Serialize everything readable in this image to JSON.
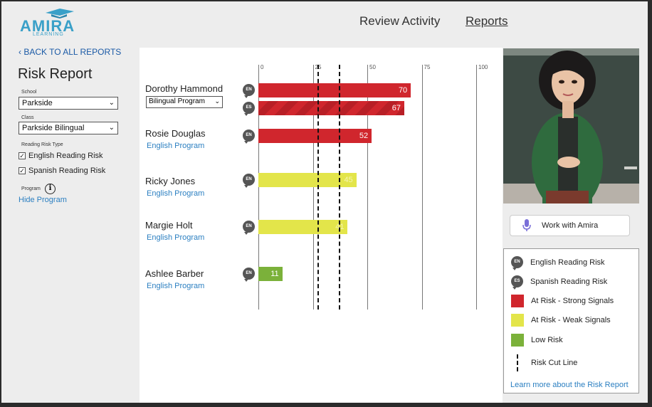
{
  "header": {
    "logo_text": "AMIRA",
    "logo_sub": "LEARNING",
    "nav": [
      {
        "label": "Review Activity"
      },
      {
        "label": "Reports"
      }
    ]
  },
  "sidebar": {
    "back_link": "BACK TO ALL REPORTS",
    "title": "Risk Report",
    "school_label": "School",
    "school_value": "Parkside",
    "class_label": "Class",
    "class_value": "Parkside Bilingual",
    "risk_type_label": "Reading Risk Type",
    "english_risk": "English Reading Risk",
    "spanish_risk": "Spanish Reading Risk",
    "program_label": "Program",
    "info_glyph": "i",
    "hide_program": "Hide Program"
  },
  "chart_data": {
    "type": "bar",
    "x_ticks": [
      "0",
      "25",
      "50",
      "75",
      "100"
    ],
    "xlim": [
      0,
      100
    ],
    "cut_lines": [
      27,
      37
    ],
    "students": [
      {
        "name": "Dorothy Hammond",
        "program": "Bilingual Program",
        "program_type": "select",
        "bars": [
          {
            "lang": "EN",
            "value": 70,
            "risk": "strong",
            "label": "70"
          },
          {
            "lang": "ES",
            "value": 67,
            "risk": "strong",
            "label": "67"
          }
        ]
      },
      {
        "name": "Rosie Douglas",
        "program": "English Program",
        "bars": [
          {
            "lang": "EN",
            "value": 52,
            "risk": "strong",
            "label": "52"
          }
        ]
      },
      {
        "name": "Ricky Jones",
        "program": "English Program",
        "bars": [
          {
            "lang": "EN",
            "value": 45,
            "risk": "weak",
            "label": "45"
          }
        ]
      },
      {
        "name": "Margie Holt",
        "program": "English Program",
        "bars": [
          {
            "lang": "EN",
            "value": 41,
            "risk": "weak",
            "label": "41"
          }
        ]
      },
      {
        "name": "Ashlee Barber",
        "program": "English Program",
        "bars": [
          {
            "lang": "EN",
            "value": 11,
            "risk": "low",
            "label": "11"
          }
        ]
      }
    ]
  },
  "right_panel": {
    "work_button": "Work with Amira",
    "legend": [
      {
        "label": "English Reading Risk",
        "badge": "EN"
      },
      {
        "label": "Spanish Reading Risk",
        "badge": "ES"
      },
      {
        "label": "At Risk - Strong Signals",
        "color": "#d0262d"
      },
      {
        "label": "At Risk - Weak Signals",
        "color": "#e3e54a"
      },
      {
        "label": "Low Risk",
        "color": "#7bb13a"
      },
      {
        "label": "Risk Cut Line"
      }
    ],
    "learn_more": "Learn more about the Risk Report"
  },
  "colors": {
    "strong": "#d0262d",
    "weak": "#e3e54a",
    "low": "#7bb13a",
    "link": "#2b7fc1"
  }
}
